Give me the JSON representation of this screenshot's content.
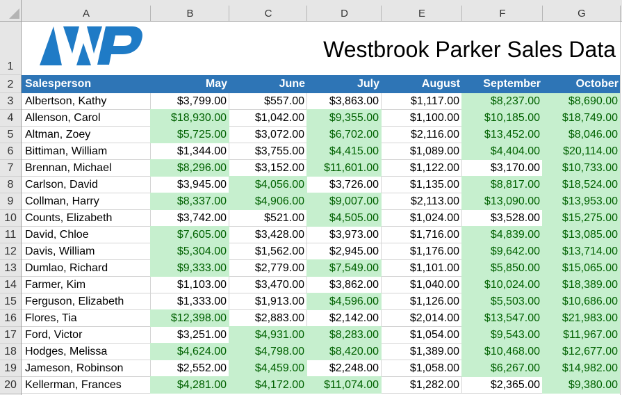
{
  "sheet": {
    "column_headers": [
      "A",
      "B",
      "C",
      "D",
      "E",
      "F",
      "G"
    ],
    "row_headers": [
      "1",
      "2",
      "3",
      "4",
      "5",
      "6",
      "7",
      "8",
      "9",
      "10",
      "11",
      "12",
      "13",
      "14",
      "15",
      "16",
      "17",
      "18",
      "19",
      "20"
    ]
  },
  "banner": {
    "title": "Westbrook Parker Sales Data",
    "logo": {
      "icon": "westbrook-parker-logo",
      "letters": "WP"
    }
  },
  "table": {
    "headers": [
      "Salesperson",
      "May",
      "June",
      "July",
      "August",
      "September",
      "October"
    ],
    "rows": [
      {
        "name": "Albertson, Kathy",
        "values": [
          "$3,799.00",
          "$557.00",
          "$3,863.00",
          "$1,117.00",
          "$8,237.00",
          "$8,690.00"
        ],
        "highlight": [
          false,
          false,
          false,
          false,
          true,
          true
        ]
      },
      {
        "name": "Allenson, Carol",
        "values": [
          "$18,930.00",
          "$1,042.00",
          "$9,355.00",
          "$1,100.00",
          "$10,185.00",
          "$18,749.00"
        ],
        "highlight": [
          true,
          false,
          true,
          false,
          true,
          true
        ]
      },
      {
        "name": "Altman, Zoey",
        "values": [
          "$5,725.00",
          "$3,072.00",
          "$6,702.00",
          "$2,116.00",
          "$13,452.00",
          "$8,046.00"
        ],
        "highlight": [
          true,
          false,
          true,
          false,
          true,
          true
        ]
      },
      {
        "name": "Bittiman, William",
        "values": [
          "$1,344.00",
          "$3,755.00",
          "$4,415.00",
          "$1,089.00",
          "$4,404.00",
          "$20,114.00"
        ],
        "highlight": [
          false,
          false,
          true,
          false,
          true,
          true
        ]
      },
      {
        "name": "Brennan, Michael",
        "values": [
          "$8,296.00",
          "$3,152.00",
          "$11,601.00",
          "$1,122.00",
          "$3,170.00",
          "$10,733.00"
        ],
        "highlight": [
          true,
          false,
          true,
          false,
          false,
          true
        ]
      },
      {
        "name": "Carlson, David",
        "values": [
          "$3,945.00",
          "$4,056.00",
          "$3,726.00",
          "$1,135.00",
          "$8,817.00",
          "$18,524.00"
        ],
        "highlight": [
          false,
          true,
          false,
          false,
          true,
          true
        ]
      },
      {
        "name": "Collman, Harry",
        "values": [
          "$8,337.00",
          "$4,906.00",
          "$9,007.00",
          "$2,113.00",
          "$13,090.00",
          "$13,953.00"
        ],
        "highlight": [
          true,
          true,
          true,
          false,
          true,
          true
        ]
      },
      {
        "name": "Counts, Elizabeth",
        "values": [
          "$3,742.00",
          "$521.00",
          "$4,505.00",
          "$1,024.00",
          "$3,528.00",
          "$15,275.00"
        ],
        "highlight": [
          false,
          false,
          true,
          false,
          false,
          true
        ]
      },
      {
        "name": "David, Chloe",
        "values": [
          "$7,605.00",
          "$3,428.00",
          "$3,973.00",
          "$1,716.00",
          "$4,839.00",
          "$13,085.00"
        ],
        "highlight": [
          true,
          false,
          false,
          false,
          true,
          true
        ]
      },
      {
        "name": "Davis, William",
        "values": [
          "$5,304.00",
          "$1,562.00",
          "$2,945.00",
          "$1,176.00",
          "$9,642.00",
          "$13,714.00"
        ],
        "highlight": [
          true,
          false,
          false,
          false,
          true,
          true
        ]
      },
      {
        "name": "Dumlao, Richard",
        "values": [
          "$9,333.00",
          "$2,779.00",
          "$7,549.00",
          "$1,101.00",
          "$5,850.00",
          "$15,065.00"
        ],
        "highlight": [
          true,
          false,
          true,
          false,
          true,
          true
        ]
      },
      {
        "name": "Farmer, Kim",
        "values": [
          "$1,103.00",
          "$3,470.00",
          "$3,862.00",
          "$1,040.00",
          "$10,024.00",
          "$18,389.00"
        ],
        "highlight": [
          false,
          false,
          false,
          false,
          true,
          true
        ]
      },
      {
        "name": "Ferguson, Elizabeth",
        "values": [
          "$1,333.00",
          "$1,913.00",
          "$4,596.00",
          "$1,126.00",
          "$5,503.00",
          "$10,686.00"
        ],
        "highlight": [
          false,
          false,
          true,
          false,
          true,
          true
        ]
      },
      {
        "name": "Flores, Tia",
        "values": [
          "$12,398.00",
          "$2,883.00",
          "$2,142.00",
          "$2,014.00",
          "$13,547.00",
          "$21,983.00"
        ],
        "highlight": [
          true,
          false,
          false,
          false,
          true,
          true
        ]
      },
      {
        "name": "Ford, Victor",
        "values": [
          "$3,251.00",
          "$4,931.00",
          "$8,283.00",
          "$1,054.00",
          "$9,543.00",
          "$11,967.00"
        ],
        "highlight": [
          false,
          true,
          true,
          false,
          true,
          true
        ]
      },
      {
        "name": "Hodges, Melissa",
        "values": [
          "$4,624.00",
          "$4,798.00",
          "$8,420.00",
          "$1,389.00",
          "$10,468.00",
          "$12,677.00"
        ],
        "highlight": [
          true,
          true,
          true,
          false,
          true,
          true
        ]
      },
      {
        "name": "Jameson, Robinson",
        "values": [
          "$2,552.00",
          "$4,459.00",
          "$2,248.00",
          "$1,058.00",
          "$6,267.00",
          "$14,982.00"
        ],
        "highlight": [
          false,
          true,
          false,
          false,
          true,
          true
        ]
      },
      {
        "name": "Kellerman, Frances",
        "values": [
          "$4,281.00",
          "$4,172.00",
          "$11,074.00",
          "$1,282.00",
          "$2,365.00",
          "$9,380.00"
        ],
        "highlight": [
          true,
          true,
          true,
          false,
          false,
          true
        ]
      }
    ]
  },
  "colors": {
    "header_fill": "#2e75b6",
    "header_text": "#ffffff",
    "highlight_fill": "#c6efce",
    "highlight_text": "#006100",
    "logo": "#1f7bc6",
    "gridline": "#d4d4d4"
  }
}
